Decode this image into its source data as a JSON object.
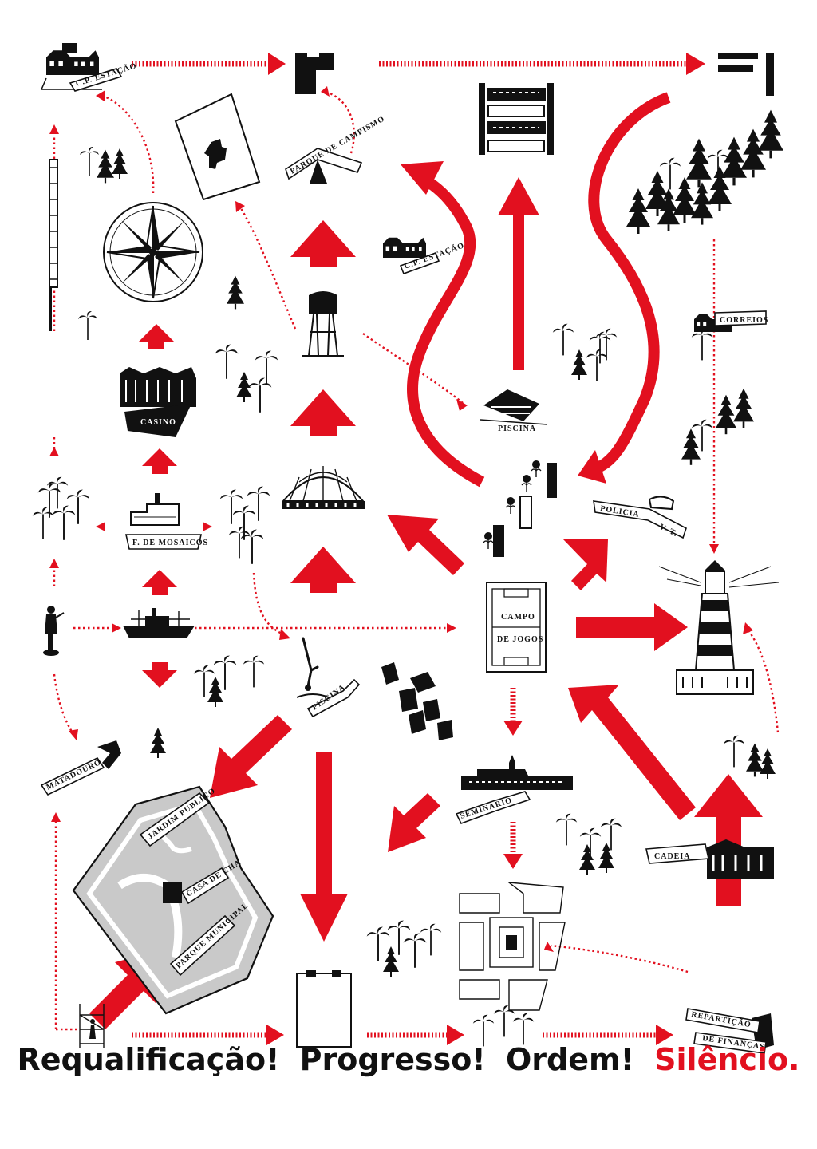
{
  "slogan": {
    "part1": "Requalificação!",
    "part2": "Progresso!",
    "part3": "Ordem!",
    "part4": "Silêncio."
  },
  "labels": {
    "estacao": "C.P. ESTAÇÃO",
    "estacao_2": "C.P. ESTAÇÃO",
    "parque_campismo": "PARQUE DE CAMPISMO",
    "casino": "CASINO",
    "piscina_1": "PISCINA",
    "piscina_2": "PISCINA",
    "correios": "CORREIOS",
    "policia": "POLICIA",
    "policia_vt": "V. T.",
    "mosaicos": "F. DE MOSAICOS",
    "campo_1": "CAMPO",
    "campo_2": "DE JOGOS",
    "matadouro": "MATADOURO",
    "seminario": "SEMINARIO",
    "jardim": "JARDIM PUBLICO",
    "casa_cha": "CASA DE CHA",
    "parque_municipal": "PARQUE MUNICIPAL",
    "cadeia": "CADEIA",
    "reparticao_1": "REPARTIÇÃO",
    "reparticao_2": "DE FINANÇAS"
  },
  "colors": {
    "accent": "#e2101f",
    "ink": "#111111",
    "background": "#ffffff",
    "park": "#c9c9c9"
  },
  "icons": [
    "train-station-icon",
    "compass-rose-icon",
    "water-tower-icon",
    "lighthouse-icon",
    "football-field-icon",
    "ship-icon",
    "factory-icon",
    "diver-icon",
    "pine-tree-icon",
    "palm-tree-icon",
    "dome-icon",
    "town-square-icon",
    "prison-icon",
    "tent-icon",
    "scaffold-worker-icon"
  ]
}
